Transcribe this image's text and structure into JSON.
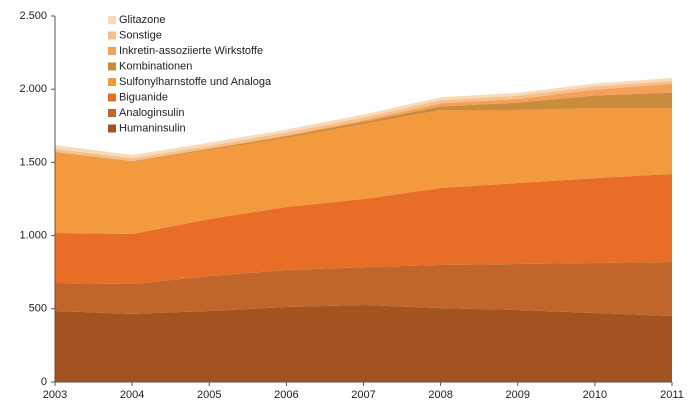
{
  "chart_data": {
    "type": "stacked_area",
    "categories": [
      "2003",
      "2004",
      "2005",
      "2006",
      "2007",
      "2008",
      "2009",
      "2010",
      "2011"
    ],
    "series": [
      {
        "name": "Humaninsulin",
        "color": "#a3531f",
        "values": [
          485,
          465,
          485,
          512,
          526,
          505,
          492,
          471,
          451
        ]
      },
      {
        "name": "Analoginsulin",
        "color": "#c0662a",
        "values": [
          191,
          204,
          239,
          253,
          259,
          294,
          314,
          342,
          369
        ]
      },
      {
        "name": "Biguanide",
        "color": "#e86e28",
        "values": [
          342,
          342,
          389,
          430,
          465,
          526,
          553,
          580,
          601
        ]
      },
      {
        "name": "Sulfonylharnstoffe und Analoga",
        "color": "#f39a3e",
        "values": [
          546,
          492,
          472,
          472,
          512,
          533,
          499,
          479,
          451
        ]
      },
      {
        "name": "Kombinationen",
        "color": "#c98b3c",
        "values": [
          5,
          5,
          8,
          12,
          15,
          25,
          50,
          85,
          105
        ]
      },
      {
        "name": "Inkretin-assoziierte Wirkstoffe",
        "color": "#f5a05a",
        "values": [
          0,
          0,
          0,
          5,
          10,
          20,
          25,
          40,
          60
        ]
      },
      {
        "name": "Sonstige",
        "color": "#f7bf8a",
        "values": [
          25,
          20,
          20,
          20,
          20,
          22,
          22,
          22,
          20
        ]
      },
      {
        "name": "Glitazone",
        "color": "#f9dab8",
        "values": [
          25,
          22,
          22,
          20,
          20,
          20,
          20,
          20,
          20
        ]
      }
    ],
    "ylim": [
      0,
      2500
    ],
    "yticks": [
      0,
      500,
      {
        "value": 1000,
        "label": "1.000"
      },
      {
        "value": 1500,
        "label": "1.500"
      },
      {
        "value": 2000,
        "label": "2.000"
      },
      {
        "value": 2500,
        "label": "2.500"
      }
    ]
  }
}
